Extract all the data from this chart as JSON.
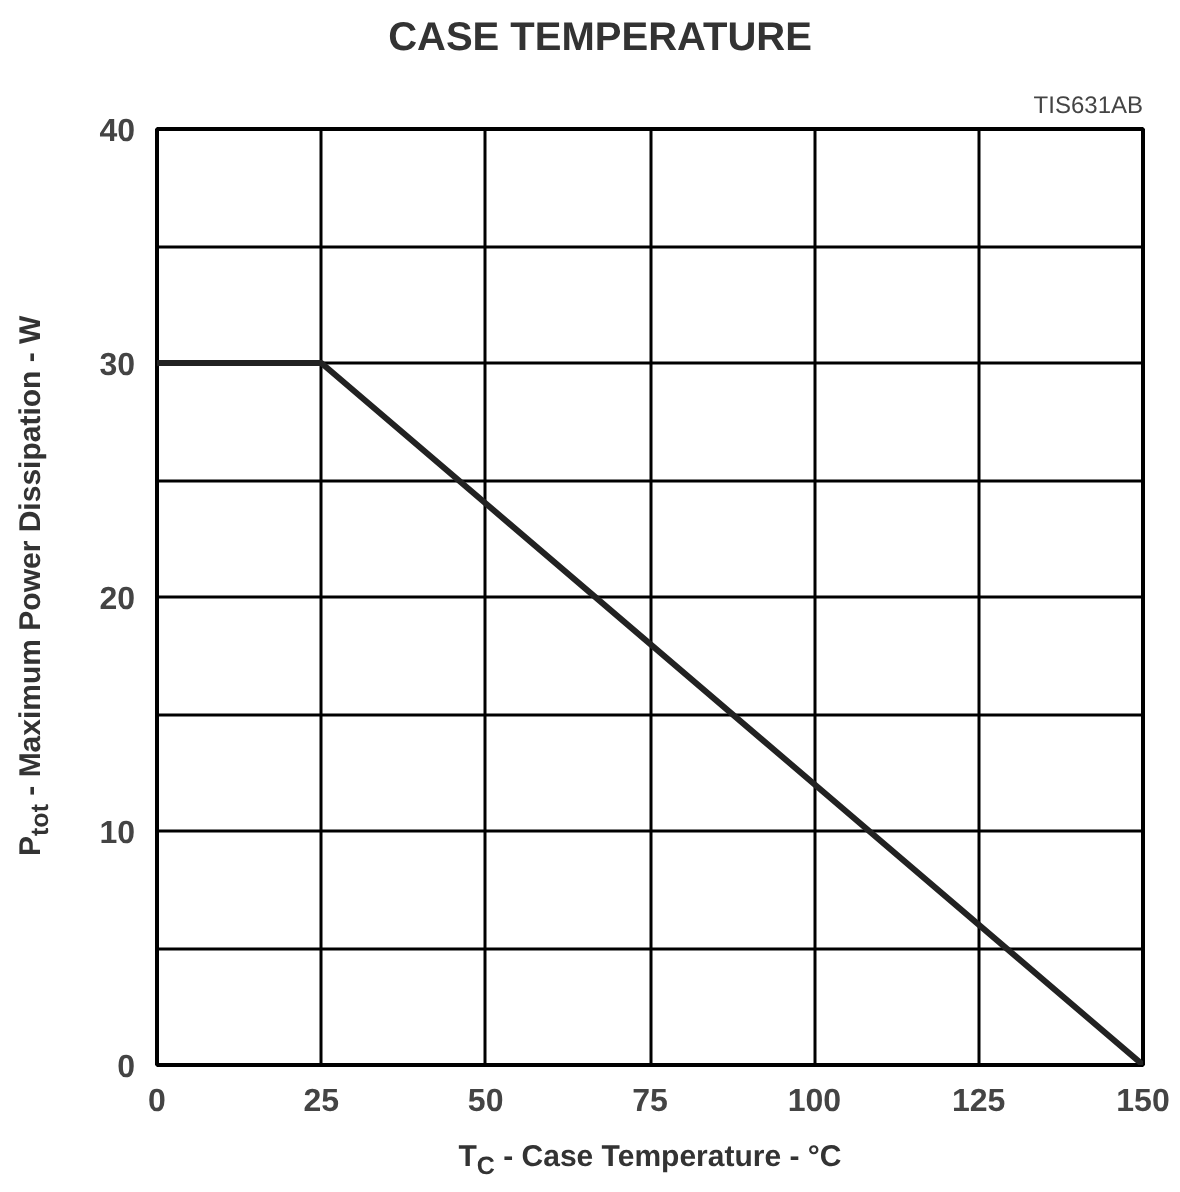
{
  "chart_data": {
    "type": "line",
    "title": "CASE TEMPERATURE",
    "xlabel": "T$_{C}$ - Case Temperature - °C",
    "ylabel": "P$_{tot}$ - Maximum Power Dissipation - W",
    "annotations": [
      "TIS631AB"
    ],
    "x": [
      0,
      25,
      150
    ],
    "series": [
      {
        "color": "#222222",
        "values": [
          30,
          30,
          0
        ]
      }
    ],
    "xlim": [
      0,
      150
    ],
    "ylim": [
      0,
      40
    ],
    "xticks": [
      0,
      25,
      50,
      75,
      100,
      125,
      150
    ],
    "yticks": [
      0,
      {
        "value": 5,
        "label": null
      },
      10,
      {
        "value": 15,
        "label": null
      },
      20,
      {
        "value": 25,
        "label": null
      },
      30,
      {
        "value": 35,
        "label": null
      },
      40
    ],
    "grid": true,
    "marker": "none",
    "line_style": "solid"
  }
}
